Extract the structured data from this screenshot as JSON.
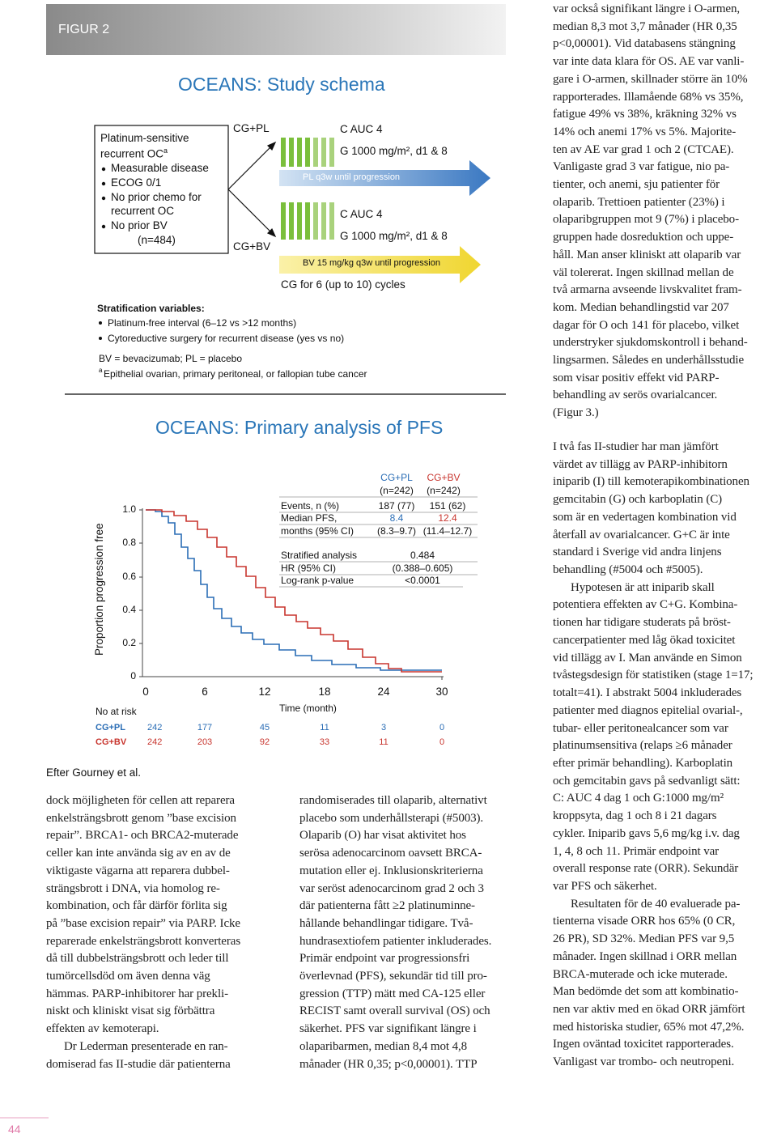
{
  "figure": {
    "label": "FIGUR 2",
    "credit": "Efter Gourney et al.",
    "schema": {
      "title": "OCEANS: Study schema",
      "inclusion": {
        "line1": "Platinum-sensitive",
        "line2": "recurrent OC",
        "line2_sup": "a",
        "bullets": [
          "Measurable disease",
          "ECOG 0/1",
          "No prior chemo for",
          "recurrent OC",
          "No prior BV"
        ],
        "n": "(n=484)"
      },
      "arm1": "CG+PL",
      "arm2": "CG+BV",
      "c1": "C AUC 4",
      "g1": "G 1000 mg/m², d1 & 8",
      "pl": "PL q3w until progression",
      "c2": "C AUC 4",
      "g2": "G 1000 mg/m², d1 & 8",
      "bv": "BV 15 mg/kg q3w until progression",
      "cycles": "CG for 6 (up to 10) cycles",
      "strat_title": "Stratification variables:",
      "strat": [
        "Platinum-free interval (6–12 vs >12 months)",
        "Cytoreductive surgery for recurrent disease (yes vs no)"
      ],
      "abbrev": "BV = bevacizumab; PL = placebo",
      "foot_sup": "a",
      "foot": "Epithelial ovarian, primary peritoneal, or fallopian tube cancer"
    },
    "pfs": {
      "title": "OCEANS: Primary analysis of PFS",
      "ylabel": "Proportion progression free",
      "yticks": [
        "1.0",
        "0.8",
        "0.6",
        "0.4",
        "0.2",
        "0"
      ],
      "xticks": [
        "0",
        "6",
        "12",
        "18",
        "24",
        "30"
      ],
      "xlabel": "Time (month)",
      "risk_title": "No at risk",
      "risk": [
        {
          "name": "CG+PL",
          "values": [
            "242",
            "177",
            "45",
            "11",
            "3",
            "0"
          ]
        },
        {
          "name": "CG+BV",
          "values": [
            "242",
            "203",
            "92",
            "33",
            "11",
            "0"
          ]
        }
      ],
      "table": {
        "head": [
          [
            "CG+PL",
            "(n=242)"
          ],
          [
            "CG+BV",
            "(n=242)"
          ]
        ],
        "rows": [
          [
            "Events, n (%)",
            "187 (77)",
            "151 (62)"
          ],
          [
            "Median PFS,",
            "8.4",
            "12.4"
          ],
          [
            "months (95% CI)",
            "(8.3–9.7)",
            "(11.4–12.7)"
          ]
        ],
        "strat": [
          [
            "Stratified analysis",
            "0.484"
          ],
          [
            "HR (95% CI)",
            "(0.388–0.605)"
          ],
          [
            "Log-rank p-value",
            "<0.0001"
          ]
        ]
      }
    }
  },
  "columns": {
    "right_top": [
      "var också signifikant längre i O-armen,",
      "median 8,3 mot 3,7 månader (HR 0,35",
      "p<0,00001). Vid databasens stängning",
      "var inte data klara för OS. AE var vanli-",
      "gare i O-armen, skillnader större än 10%",
      "rapporterades. Illamående 68% vs 35%,",
      "fatigue 49% vs 38%, kräkning 32% vs",
      "14% och anemi 17% vs 5%. Majorite-",
      "ten av AE var grad 1 och 2 (CTCAE).",
      "Vanligaste grad 3 var fatigue, nio pa-",
      "tienter, och anemi, sju patienter för",
      "olaparib. Trettioen patienter (23%) i",
      "olaparibgruppen mot 9 (7%) i placebo-",
      "gruppen hade dosreduktion och uppe-",
      "håll. Man anser kliniskt att olaparib var",
      "väl tolererat. Ingen skillnad mellan de",
      "två armarna avseende livskvalitet fram-",
      "kom. Median behandlingstid var 207",
      "dagar för O och 141 för placebo, vilket",
      "understryker sjukdomskontroll i behand-",
      "lingsarmen. Således en underhållsstudie",
      "som visar positiv effekt vid PARP-",
      "behandling av serös ovarialcancer.",
      "(Figur 3.)"
    ],
    "right_bottom": [
      "I två fas II-studier har man jämfört",
      "värdet av tillägg av PARP-inhibitorn",
      "iniparib (I) till kemoterapikombinationen",
      "gemcitabin (G) och karboplatin (C)",
      "som är en vedertagen kombination vid",
      "återfall av ovarialcancer. G+C är inte",
      "standard i Sverige vid andra linjens",
      "behandling (#5004 och #5005).",
      "Hypotesen är att iniparib skall",
      "potentiera effekten av C+G. Kombina-",
      "tionen har tidigare studerats på bröst-",
      "cancerpatienter med låg ökad toxicitet",
      "vid tillägg av I. Man använde en Simon",
      "tvåstegsdesign för statistiken (stage 1=17;",
      "totalt=41). I abstrakt 5004 inkluderades",
      "patienter med diagnos epitelial ovarial-,",
      "tubar- eller peritonealcancer som var",
      "platinumsensitiva (relaps ≥6 månader",
      "efter primär behandling). Karboplatin",
      "och gemcitabin gavs på sedvanligt sätt:",
      "C: AUC 4 dag 1 och G:1000 mg/m²",
      "kroppsyta, dag 1 och 8 i 21 dagars",
      "cykler. Iniparib gavs 5,6 mg/kg i.v. dag",
      "1, 4, 8 och 11. Primär endpoint var",
      "overall response rate (ORR). Sekundär",
      "var PFS och säkerhet.",
      "Resultaten för de 40 evaluerade pa-",
      "tienterna visade ORR hos 65% (0 CR,",
      "26 PR), SD 32%. Median PFS var 9,5",
      "månader. Ingen skillnad i ORR mellan",
      "BRCA-muterade och icke muterade.",
      "Man bedömde det som att kombinatio-",
      "nen var aktiv med en ökad ORR jämfört",
      "med historiska studier, 65% mot 47,2%.",
      "Ingen oväntad toxicitet rapporterades.",
      "Vanligast var trombo- och neutropeni."
    ],
    "bottom_left": [
      "dock möjligheten för cellen att reparera",
      "enkelsträngsbrott genom ”base excision",
      "repair”. BRCA1- och BRCA2-muterade",
      "celler kan inte använda sig av en av de",
      "viktigaste vägarna att reparera dubbel-",
      "strängsbrott i DNA, via homolog re-",
      "kombination, och får därför förlita sig",
      "på ”base excision repair” via PARP. Icke",
      "reparerade enkelsträngsbrott konverteras",
      "då till dubbelsträngsbrott och leder till",
      "tumörcellsdöd om även denna väg",
      "hämmas. PARP-inhibitorer har prekli-",
      "niskt och kliniskt visat sig förbättra",
      "effekten av kemoterapi.",
      "Dr Lederman presenterade en ran-",
      "domiserad fas II-studie där patienterna"
    ],
    "bottom_mid": [
      "randomiserades till olaparib, alternativt",
      "placebo som underhållsterapi (#5003).",
      "Olaparib (O) har visat aktivitet hos",
      "serösa adenocarcinom oavsett BRCA-",
      "mutation eller ej. Inklusionskriterierna",
      "var seröst adenocarcinom grad 2 och 3",
      "där patienterna fått ≥2 platinuminne-",
      "hållande behandlingar tidigare. Två-",
      "hundrasextiofem patienter inkluderades.",
      "Primär endpoint var progressionsfri",
      "överlevnad (PFS), sekundär tid till pro-",
      "gression (TTP) mätt med CA-125 eller",
      "RECIST samt overall survival (OS) och",
      "säkerhet. PFS var signifikant längre i",
      "olaparibarmen, median 8,4 mot 4,8",
      "månader (HR 0,35; p<0,00001). TTP"
    ]
  },
  "page_number": "44"
}
